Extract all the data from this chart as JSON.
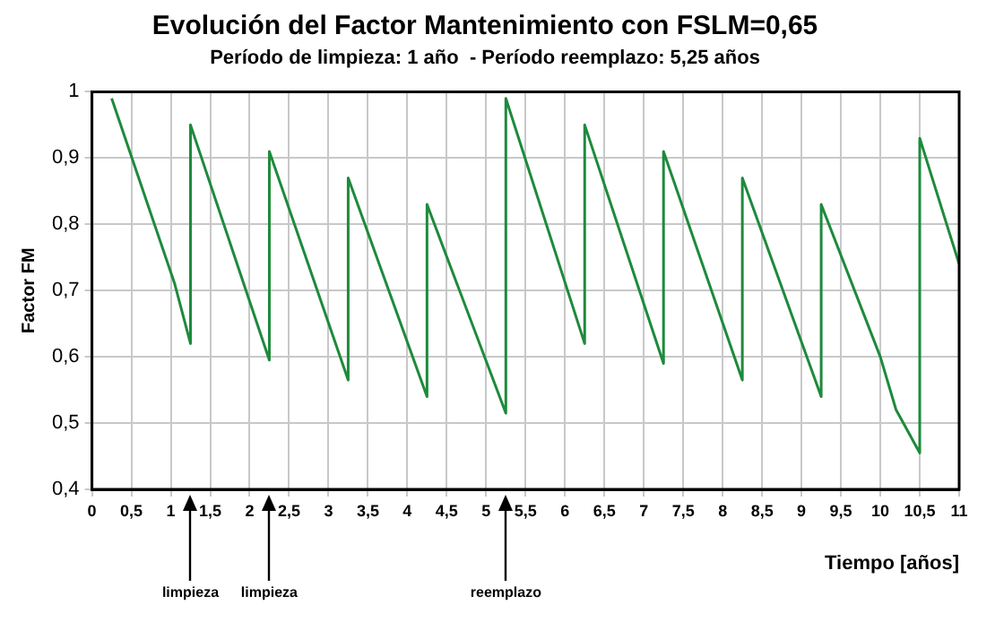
{
  "chart_data": {
    "type": "line",
    "title": "Evolución del Factor Mantenimiento con FSLM=0,65",
    "subtitle": "Período de limpieza: 1 año  - Período reemplazo: 5,25 años",
    "xlabel": "Tiempo [años]",
    "ylabel": "Factor FM",
    "x": [
      0.25,
      1.05,
      1.25,
      1.25,
      2.25,
      2.25,
      3.25,
      3.25,
      4.25,
      4.25,
      5.25,
      5.25,
      6.25,
      6.25,
      7.25,
      7.25,
      8.25,
      8.25,
      9.25,
      9.25,
      10.0,
      10.2,
      10.5,
      10.5,
      11.0
    ],
    "series": [
      {
        "color": "#1e8a3c",
        "values": [
          0.99,
          0.71,
          0.62,
          0.95,
          0.595,
          0.91,
          0.565,
          0.87,
          0.54,
          0.83,
          0.515,
          0.99,
          0.62,
          0.95,
          0.59,
          0.91,
          0.565,
          0.87,
          0.54,
          0.83,
          0.6,
          0.52,
          0.455,
          0.93,
          0.74
        ]
      }
    ],
    "xlim": [
      0,
      11
    ],
    "ylim": [
      0.4,
      1
    ],
    "xticks": [
      0,
      {
        "value": 0.5,
        "label": "0,5"
      },
      1,
      {
        "value": 1.5,
        "label": "1,5"
      },
      2,
      {
        "value": 2.5,
        "label": "2,5"
      },
      3,
      {
        "value": 3.5,
        "label": "3,5"
      },
      4,
      {
        "value": 4.5,
        "label": "4,5"
      },
      5,
      {
        "value": 5.5,
        "label": "5,5"
      },
      6,
      {
        "value": 6.5,
        "label": "6,5"
      },
      7,
      {
        "value": 7.5,
        "label": "7,5"
      },
      8,
      {
        "value": 8.5,
        "label": "8,5"
      },
      9,
      {
        "value": 9.5,
        "label": "9,5"
      },
      10,
      {
        "value": 10.5,
        "label": "10,5"
      },
      11
    ],
    "yticks": [
      {
        "value": 0.4,
        "label": "0,4"
      },
      {
        "value": 0.5,
        "label": "0,5"
      },
      {
        "value": 0.6,
        "label": "0,6"
      },
      {
        "value": 0.7,
        "label": "0,7"
      },
      {
        "value": 0.8,
        "label": "0,8"
      },
      {
        "value": 0.9,
        "label": "0,9"
      },
      1
    ],
    "annotations": [
      "limpieza",
      "limpieza",
      "reemplazo"
    ],
    "grid": true,
    "legend": false,
    "marker": "none",
    "line_style": "solid"
  }
}
